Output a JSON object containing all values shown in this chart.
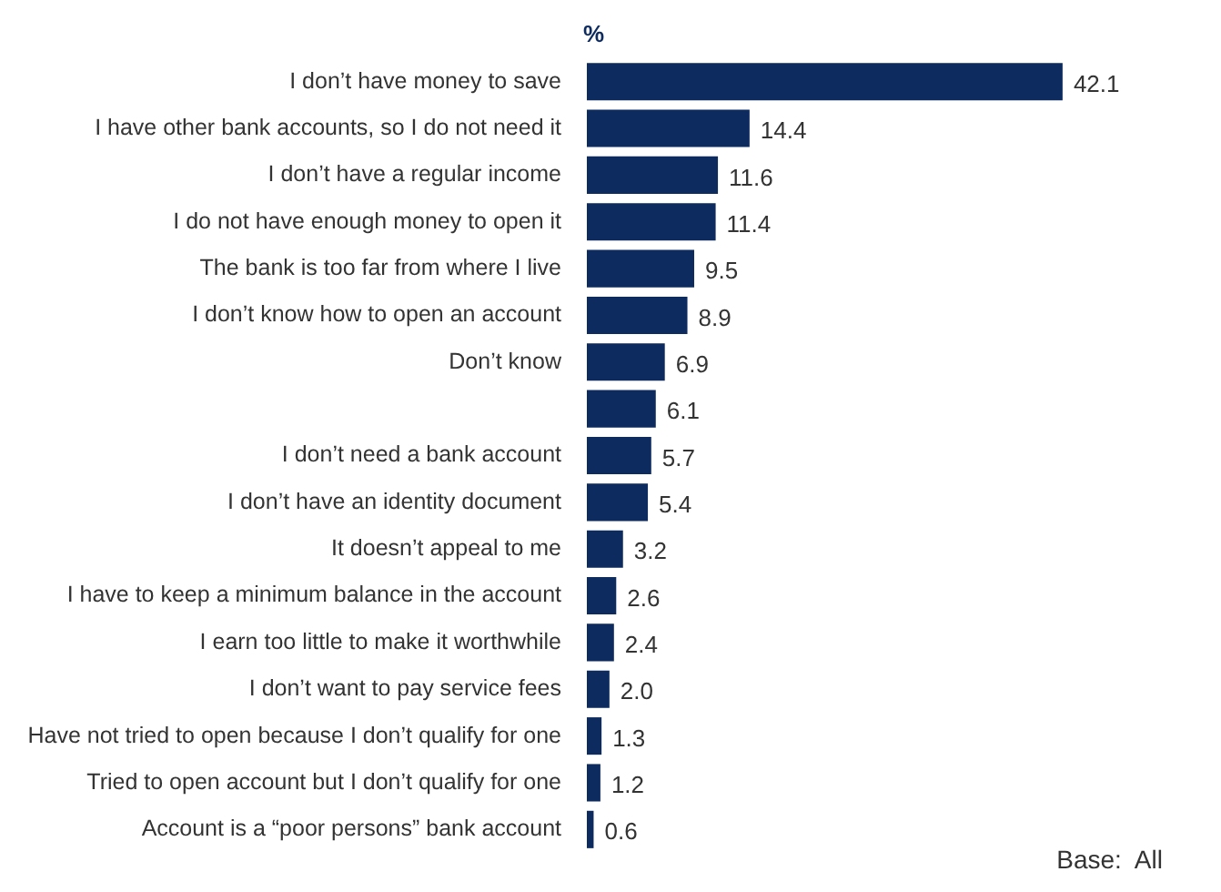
{
  "chart_data": {
    "type": "bar",
    "orientation": "horizontal",
    "title": "%",
    "annotations": [
      "Base:  All"
    ],
    "legend": false,
    "categories": [
      "I don’t have money to save",
      "I have other bank accounts, so I do not need it",
      "I don’t have a regular income",
      "I do not have enough money to open it",
      "The bank is too far from where I live",
      "I don’t know how to open an account",
      "Don’t know",
      null,
      "I don’t need a bank account",
      "I don’t have an identity document",
      "It doesn’t appeal to me",
      "I have to keep a minimum balance in the account",
      "I earn too little to make it worthwhile",
      "I don’t want to pay service fees",
      "Have not tried to open because I don’t qualify for one",
      "Tried to open account but I don’t qualify for one",
      "Account is a “poor persons” bank account"
    ],
    "values": [
      42.1,
      14.4,
      11.6,
      11.4,
      9.5,
      8.9,
      6.9,
      6.1,
      5.7,
      5.4,
      3.2,
      2.6,
      2.4,
      2.0,
      1.3,
      1.2,
      0.6
    ],
    "value_labels": [
      "42.1",
      "14.4",
      "11.6",
      "11.4",
      "9.5",
      "8.9",
      "6.9",
      "6.1",
      "5.7",
      "5.4",
      "3.2",
      "2.6",
      "2.4",
      "2.0",
      "1.3",
      "1.2",
      "0.6"
    ],
    "color": "#0d2b5e"
  }
}
